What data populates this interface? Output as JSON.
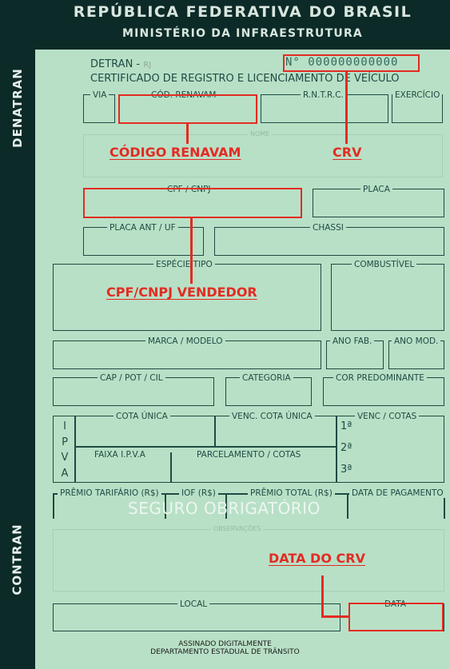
{
  "header": {
    "title": "REPÚBLICA FEDERATIVA DO BRASIL",
    "subtitle": "MINISTÉRIO DA INFRAESTRUTURA"
  },
  "sidebar": {
    "top_label": "DENATRAN",
    "bottom_label": "CONTRAN"
  },
  "doc": {
    "detran": "DETRAN -",
    "state": "RJ",
    "title": "CERTIFICADO DE REGISTRO E LICENCIAMENTO DE VEÍCULO",
    "number": "N° 000000000000"
  },
  "labels": {
    "via": "VIA",
    "renavam": "CÓD. RENAVAM",
    "rntrc": "R.N.T.R.C.",
    "exercicio": "EXERCÍCIO",
    "nome": "NOME",
    "cpf": "CPF / CNPJ",
    "placa": "PLACA",
    "placa_ant": "PLACA ANT / UF",
    "chassi": "CHASSI",
    "especie": "ESPÉCIE TIPO",
    "combustivel": "COMBUSTÍVEL",
    "marca": "MARCA / MODELO",
    "ano_fab": "ANO FAB.",
    "ano_mod": "ANO MOD.",
    "cap": "CAP / POT / CIL",
    "categoria": "CATEGORIA",
    "cor": "COR PREDOMINANTE",
    "cota_unica": "COTA ÚNICA",
    "venc_cota_unica": "VENC. COTA ÚNICA",
    "venc_cotas": "VENC / COTAS",
    "faixa": "FAIXA I.P.V.A",
    "parcelamento": "PARCELAMENTO / COTAS",
    "ipva_letters": [
      "I",
      "P",
      "V",
      "A"
    ],
    "cotas": [
      "1ª",
      "2ª",
      "3ª"
    ],
    "premio_tarifario": "PRÊMIO TARIFÁRIO (R$)",
    "iof": "IOF (R$)",
    "premio_total": "PRÊMIO TOTAL (R$)",
    "data_pagamento": "DATA DE PAGAMENTO",
    "seguro": "SEGURO OBRIGATÓRIO",
    "observacoes": "OBSERVAÇÕES",
    "local": "LOCAL",
    "data": "DATA"
  },
  "footer": {
    "line1": "ASSINADO DIGITALMENTE",
    "line2": "DEPARTAMENTO ESTADUAL DE TRÂNSITO"
  },
  "annotations": {
    "renavam": "CÓDIGO RENAVAM",
    "crv": "CRV",
    "cpf": "CPF/CNPJ VENDEDOR",
    "data": "DATA DO CRV"
  },
  "colors": {
    "background": "#b8e0c6",
    "dark": "#0c2a27",
    "annotation": "#e32b23"
  }
}
